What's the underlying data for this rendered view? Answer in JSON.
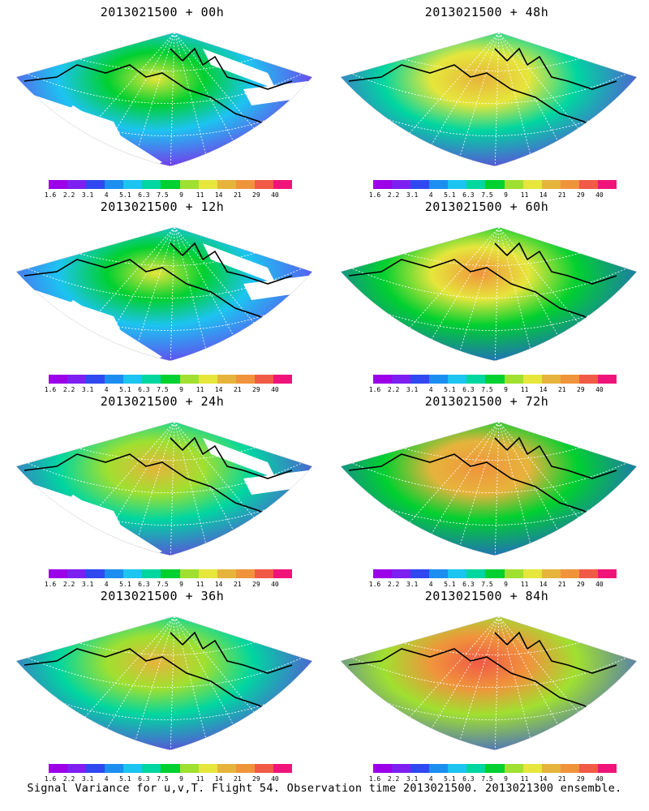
{
  "panels": [
    {
      "title": "2013021500 + 00h",
      "level": 0.1
    },
    {
      "title": "2013021500 + 48h",
      "level": 0.45
    },
    {
      "title": "2013021500 + 12h",
      "level": 0.2
    },
    {
      "title": "2013021500 + 60h",
      "level": 0.55
    },
    {
      "title": "2013021500 + 24h",
      "level": 0.3
    },
    {
      "title": "2013021500 + 72h",
      "level": 0.68
    },
    {
      "title": "2013021500 + 36h",
      "level": 0.38
    },
    {
      "title": "2013021500 + 84h",
      "level": 0.8
    }
  ],
  "colorbar": {
    "labels": [
      "1.6",
      "2.2",
      "3.1",
      "4",
      "5.1",
      "6.3",
      "7.5",
      "9",
      "11",
      "14",
      "21",
      "29",
      "40"
    ],
    "colors": [
      "#9b00e8",
      "#7d1ff0",
      "#3048f0",
      "#1c8ef0",
      "#1cc4f0",
      "#00d6a0",
      "#00d030",
      "#a0e030",
      "#e6e63c",
      "#e6b43c",
      "#f0943c",
      "#f05a46",
      "#f0147a"
    ]
  },
  "caption": "Signal Variance for u,v,T. Flight 54. Observation time 2013021500. 2013021300 ensemble."
}
